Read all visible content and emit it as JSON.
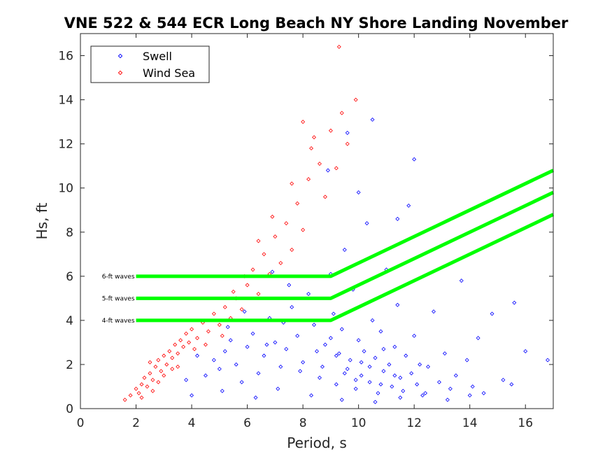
{
  "chart_data": {
    "type": "scatter",
    "title": "VNE 522 & 544 ECR Long Beach NY Shore Landing November",
    "xlabel": "Period, s",
    "ylabel": "Hs, ft",
    "xlim": [
      0,
      17
    ],
    "ylim": [
      0,
      17
    ],
    "xticks": [
      "0",
      "2",
      "4",
      "6",
      "8",
      "10",
      "12",
      "14",
      "16"
    ],
    "yticks": [
      "0",
      "2",
      "4",
      "6",
      "8",
      "10",
      "12",
      "14",
      "16"
    ],
    "grid": false,
    "legend_position": "top-left",
    "marker": "diamond",
    "series": [
      {
        "name": "Swell",
        "color": "#0000ff",
        "points": [
          [
            4.5,
            1.5
          ],
          [
            4.8,
            2.2
          ],
          [
            5.0,
            1.8
          ],
          [
            5.2,
            2.6
          ],
          [
            5.4,
            3.1
          ],
          [
            5.6,
            2.0
          ],
          [
            5.8,
            1.2
          ],
          [
            6.0,
            2.8
          ],
          [
            6.2,
            3.4
          ],
          [
            6.4,
            1.6
          ],
          [
            6.6,
            2.4
          ],
          [
            6.8,
            4.1
          ],
          [
            7.0,
            3.0
          ],
          [
            7.2,
            1.9
          ],
          [
            7.4,
            2.7
          ],
          [
            7.6,
            4.6
          ],
          [
            7.8,
            3.3
          ],
          [
            8.0,
            2.1
          ],
          [
            8.2,
            5.2
          ],
          [
            8.4,
            3.8
          ],
          [
            8.6,
            1.4
          ],
          [
            8.8,
            2.9
          ],
          [
            9.0,
            6.1
          ],
          [
            9.1,
            4.3
          ],
          [
            9.2,
            1.1
          ],
          [
            9.3,
            2.5
          ],
          [
            9.4,
            3.6
          ],
          [
            9.5,
            7.2
          ],
          [
            9.6,
            1.8
          ],
          [
            9.7,
            2.2
          ],
          [
            9.8,
            5.4
          ],
          [
            9.9,
            0.9
          ],
          [
            10.0,
            3.1
          ],
          [
            10.1,
            1.5
          ],
          [
            10.2,
            2.6
          ],
          [
            10.3,
            8.4
          ],
          [
            10.4,
            1.2
          ],
          [
            10.5,
            4.0
          ],
          [
            10.6,
            2.3
          ],
          [
            10.7,
            0.7
          ],
          [
            10.8,
            3.5
          ],
          [
            10.9,
            1.7
          ],
          [
            11.0,
            6.3
          ],
          [
            11.1,
            2.0
          ],
          [
            11.2,
            1.0
          ],
          [
            11.3,
            2.8
          ],
          [
            11.4,
            4.7
          ],
          [
            11.5,
            1.4
          ],
          [
            11.6,
            0.8
          ],
          [
            11.7,
            2.4
          ],
          [
            11.8,
            9.2
          ],
          [
            11.9,
            1.6
          ],
          [
            12.0,
            3.3
          ],
          [
            12.1,
            1.1
          ],
          [
            12.2,
            2.0
          ],
          [
            12.3,
            0.6
          ],
          [
            12.5,
            1.9
          ],
          [
            12.7,
            4.4
          ],
          [
            12.9,
            1.2
          ],
          [
            13.1,
            2.5
          ],
          [
            13.3,
            0.9
          ],
          [
            13.5,
            1.5
          ],
          [
            13.7,
            5.8
          ],
          [
            13.9,
            2.2
          ],
          [
            14.1,
            1.0
          ],
          [
            14.3,
            3.2
          ],
          [
            14.5,
            0.7
          ],
          [
            14.8,
            4.3
          ],
          [
            15.2,
            1.3
          ],
          [
            15.6,
            4.8
          ],
          [
            16.0,
            2.6
          ],
          [
            16.8,
            2.2
          ],
          [
            12.0,
            11.3
          ],
          [
            10.5,
            13.1
          ],
          [
            9.6,
            12.5
          ],
          [
            8.9,
            10.8
          ],
          [
            10.0,
            9.8
          ],
          [
            11.4,
            8.6
          ],
          [
            7.5,
            5.6
          ],
          [
            6.9,
            6.2
          ],
          [
            5.9,
            4.4
          ],
          [
            5.3,
            3.7
          ],
          [
            4.2,
            2.4
          ],
          [
            3.8,
            1.3
          ],
          [
            4.0,
            0.6
          ],
          [
            5.1,
            0.8
          ],
          [
            6.3,
            0.5
          ],
          [
            7.1,
            0.9
          ],
          [
            8.3,
            0.6
          ],
          [
            9.4,
            0.4
          ],
          [
            10.6,
            0.3
          ],
          [
            11.5,
            0.5
          ],
          [
            12.4,
            0.7
          ],
          [
            13.2,
            0.4
          ],
          [
            14.0,
            0.6
          ],
          [
            15.5,
            1.1
          ],
          [
            8.7,
            1.9
          ],
          [
            9.2,
            2.4
          ],
          [
            9.9,
            1.3
          ],
          [
            10.4,
            1.9
          ],
          [
            10.9,
            2.7
          ],
          [
            11.3,
            1.5
          ],
          [
            9.5,
            1.6
          ],
          [
            10.1,
            2.1
          ],
          [
            10.8,
            1.1
          ],
          [
            9.0,
            3.2
          ],
          [
            8.5,
            2.6
          ],
          [
            7.9,
            1.7
          ],
          [
            7.3,
            3.9
          ],
          [
            6.7,
            2.9
          ]
        ]
      },
      {
        "name": "Wind Sea",
        "color": "#ff0000",
        "points": [
          [
            1.6,
            0.4
          ],
          [
            1.8,
            0.6
          ],
          [
            2.0,
            0.9
          ],
          [
            2.1,
            0.7
          ],
          [
            2.2,
            1.1
          ],
          [
            2.3,
            1.4
          ],
          [
            2.4,
            1.0
          ],
          [
            2.5,
            1.6
          ],
          [
            2.6,
            1.3
          ],
          [
            2.7,
            1.9
          ],
          [
            2.8,
            2.2
          ],
          [
            2.9,
            1.7
          ],
          [
            3.0,
            2.4
          ],
          [
            3.1,
            2.0
          ],
          [
            3.2,
            2.6
          ],
          [
            3.3,
            2.3
          ],
          [
            3.4,
            2.9
          ],
          [
            3.5,
            2.5
          ],
          [
            3.6,
            3.1
          ],
          [
            3.7,
            2.8
          ],
          [
            3.8,
            3.4
          ],
          [
            3.9,
            3.0
          ],
          [
            4.0,
            3.6
          ],
          [
            4.2,
            3.2
          ],
          [
            4.4,
            3.9
          ],
          [
            4.6,
            3.5
          ],
          [
            4.8,
            4.3
          ],
          [
            5.0,
            3.8
          ],
          [
            5.2,
            4.6
          ],
          [
            5.4,
            4.1
          ],
          [
            5.6,
            5.0
          ],
          [
            5.8,
            4.5
          ],
          [
            6.0,
            5.6
          ],
          [
            6.2,
            6.3
          ],
          [
            6.4,
            5.2
          ],
          [
            6.6,
            7.0
          ],
          [
            6.8,
            6.1
          ],
          [
            7.0,
            7.8
          ],
          [
            7.2,
            6.6
          ],
          [
            7.4,
            8.4
          ],
          [
            7.6,
            7.2
          ],
          [
            7.8,
            9.3
          ],
          [
            8.0,
            8.1
          ],
          [
            8.2,
            10.4
          ],
          [
            8.4,
            12.3
          ],
          [
            8.6,
            11.1
          ],
          [
            8.8,
            9.6
          ],
          [
            9.0,
            12.6
          ],
          [
            9.2,
            10.9
          ],
          [
            9.4,
            13.4
          ],
          [
            9.6,
            12.0
          ],
          [
            9.9,
            14.0
          ],
          [
            9.3,
            16.4
          ],
          [
            8.0,
            13.0
          ],
          [
            8.3,
            11.8
          ],
          [
            7.6,
            10.2
          ],
          [
            6.9,
            8.7
          ],
          [
            6.4,
            7.6
          ],
          [
            5.9,
            6.0
          ],
          [
            5.5,
            5.3
          ],
          [
            2.5,
            2.1
          ],
          [
            2.8,
            1.2
          ],
          [
            3.0,
            1.5
          ],
          [
            3.3,
            1.8
          ],
          [
            2.2,
            0.5
          ],
          [
            2.6,
            0.8
          ],
          [
            3.5,
            1.9
          ],
          [
            4.1,
            2.7
          ],
          [
            4.5,
            2.9
          ],
          [
            5.1,
            3.3
          ]
        ]
      }
    ],
    "threshold_lines": [
      {
        "label": "6-ft waves",
        "color": "#00ff00",
        "points": [
          [
            2,
            6
          ],
          [
            9,
            6
          ],
          [
            17,
            10.8
          ]
        ]
      },
      {
        "label": "5-ft waves",
        "color": "#00ff00",
        "points": [
          [
            2,
            5
          ],
          [
            9,
            5
          ],
          [
            17,
            9.8
          ]
        ]
      },
      {
        "label": "4-ft waves",
        "color": "#00ff00",
        "points": [
          [
            2,
            4
          ],
          [
            9,
            4
          ],
          [
            17,
            8.8
          ]
        ]
      }
    ]
  }
}
